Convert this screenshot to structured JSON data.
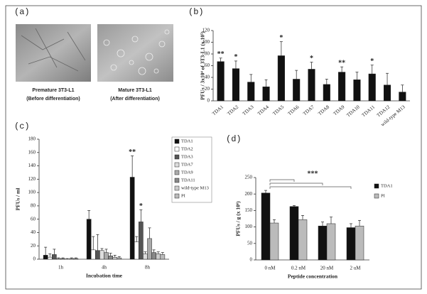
{
  "panel_a": {
    "label": "(a)",
    "images": [
      {
        "caption": "Premature 3T3-L1",
        "subcaption": "(Before differentiation)"
      },
      {
        "caption": "Mature 3T3-L1",
        "subcaption": "(After differentiation)"
      }
    ]
  },
  "chart_data": [
    {
      "type": "bar",
      "label": "(b)",
      "y_label": "PFUs / 3x10⁴ of 3T3-L1 (x 10⁵)",
      "categories": [
        "TDA1",
        "TDA2",
        "TDA3",
        "TDA4",
        "TDA5",
        "TDA6",
        "TDA7",
        "TDA8",
        "TDA9",
        "TDA10",
        "TDA11",
        "TDA12",
        "wild-type M13"
      ],
      "values": [
        67,
        55,
        32,
        24,
        77,
        37,
        54,
        28,
        49,
        36,
        46,
        27,
        15
      ],
      "errors": [
        6,
        13,
        13,
        12,
        24,
        15,
        12,
        9,
        9,
        13,
        15,
        20,
        12
      ],
      "markers": [
        "**",
        "*",
        null,
        null,
        "*",
        null,
        "*",
        null,
        "**",
        null,
        "*",
        null,
        null
      ],
      "color": "#111111",
      "ylim": [
        0,
        120
      ],
      "yticks": [
        0,
        20,
        40,
        60,
        80,
        100,
        120
      ]
    },
    {
      "type": "bar",
      "label": "(c)",
      "y_label": "PFUs / ml",
      "x_label": "Incubation time",
      "categories": [
        "1h",
        "4h",
        "8h"
      ],
      "series": [
        {
          "name": "TDA1",
          "color": "#111111",
          "values": [
            6,
            60,
            123
          ],
          "errors": [
            12,
            13,
            32
          ],
          "markers": [
            null,
            null,
            "**"
          ]
        },
        {
          "name": "TDA2",
          "color": "#ffffff",
          "values": [
            3,
            14,
            26
          ],
          "errors": [
            5,
            20,
            8
          ]
        },
        {
          "name": "TDA3",
          "color": "#555555",
          "values": [
            7,
            13,
            56
          ],
          "errors": [
            8,
            24,
            18
          ],
          "markers": [
            null,
            null,
            "*"
          ]
        },
        {
          "name": "TDA7",
          "color": "#dddddd",
          "values": [
            1,
            13,
            8
          ],
          "errors": [
            1,
            3,
            3
          ]
        },
        {
          "name": "TDA9",
          "color": "#aaaaaa",
          "values": [
            1,
            10,
            31
          ],
          "errors": [
            1,
            5,
            16
          ]
        },
        {
          "name": "TDA11",
          "color": "#888888",
          "values": [
            0,
            5,
            10
          ],
          "errors": [
            1,
            4,
            4
          ]
        },
        {
          "name": "wild-type M13",
          "color": "#cccccc",
          "values": [
            1,
            3,
            8
          ],
          "errors": [
            1,
            3,
            3
          ]
        },
        {
          "name": "PI",
          "color": "#bbbbbb",
          "values": [
            1,
            2,
            7
          ],
          "errors": [
            1,
            2,
            3
          ]
        }
      ],
      "ylim": [
        0,
        180
      ],
      "yticks": [
        0,
        20,
        40,
        60,
        80,
        100,
        120,
        140,
        160,
        180
      ],
      "legend": "right"
    },
    {
      "type": "bar",
      "label": "(d)",
      "y_label": "PFUs / g (x 10⁶)",
      "x_label": "Peptide concentration",
      "categories": [
        "0 nM",
        "0.2 nM",
        "20 nM",
        "2 uM"
      ],
      "series": [
        {
          "name": "TDA1",
          "color": "#111111",
          "values": [
            203,
            162,
            103,
            98
          ],
          "errors": [
            8,
            3,
            12,
            12
          ]
        },
        {
          "name": "PI",
          "color": "#bbbbbb",
          "values": [
            112,
            122,
            110,
            103
          ],
          "errors": [
            10,
            13,
            20,
            17
          ]
        }
      ],
      "annotation": "***",
      "ylim": [
        0,
        250
      ],
      "yticks": [
        0,
        50,
        100,
        150,
        200,
        250
      ],
      "legend": "right"
    }
  ]
}
